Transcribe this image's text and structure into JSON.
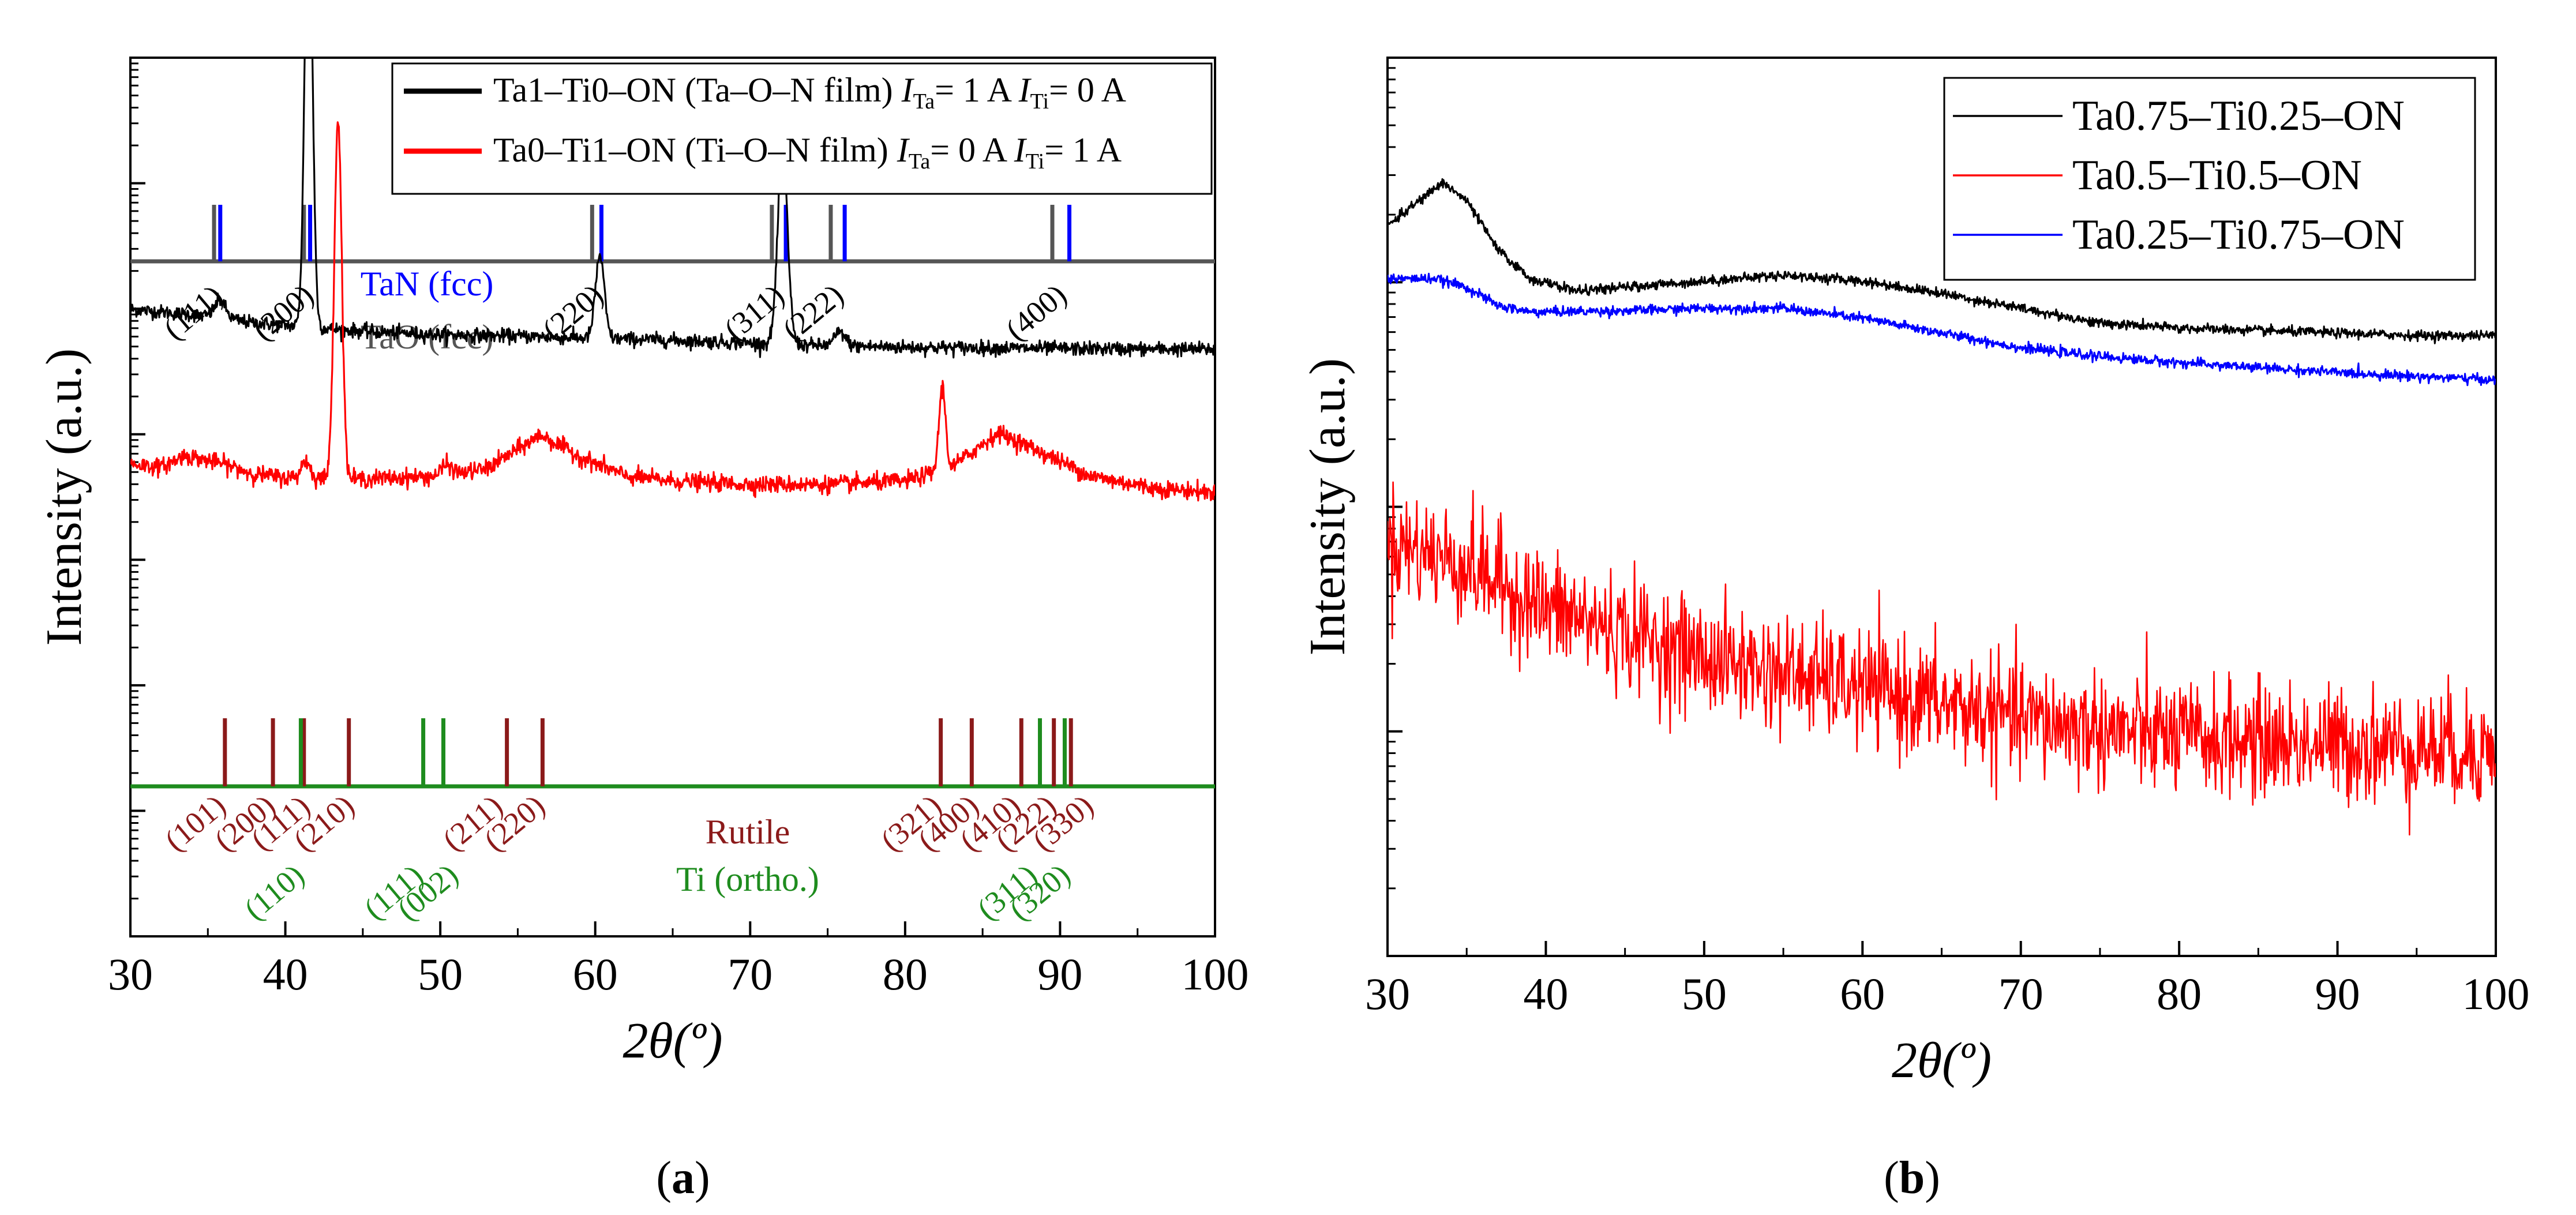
{
  "colors": {
    "black": "#000000",
    "red": "#ff0000",
    "blue": "#0000ff",
    "gray": "#555555",
    "maroon": "#8b1a1a",
    "green": "#1e8c1e"
  },
  "captions": {
    "a": "a",
    "b": "b"
  },
  "chart_data": [
    {
      "type": "line",
      "panel": "a",
      "xlabel": "2θ(º)",
      "ylabel": "Intensity (a.u.)",
      "xlim": [
        30,
        100
      ],
      "ylog": true,
      "x_ticks": [
        "30",
        "40",
        "50",
        "60",
        "70",
        "80",
        "90",
        "100"
      ],
      "legend": [
        {
          "name": "Ta1–Ti0–ON (Ta–O–N film) ",
          "cur_a": "Ta",
          "cur_a_val": "= 1 A ",
          "cur_b": "Ti",
          "cur_b_val": "= 0 A",
          "color": "#000000"
        },
        {
          "name": "Ta0–Ti1–ON (Ti–O–N film) ",
          "cur_a": "Ta",
          "cur_a_val": "= 0 A ",
          "cur_b": "Ti",
          "cur_b_val": "= 1 A",
          "color": "#ff0000"
        }
      ],
      "series": [
        {
          "name": "Ta1–Ti0–ON (Ta–O–N film)",
          "color": "#000000",
          "background": [
            [
              30,
              1.15
            ],
            [
              35,
              1.05
            ],
            [
              38,
              0.95
            ],
            [
              40,
              0.92
            ],
            [
              45,
              0.83
            ],
            [
              50,
              0.78
            ],
            [
              55,
              0.76
            ],
            [
              60,
              0.73
            ],
            [
              65,
              0.7
            ],
            [
              70,
              0.66
            ],
            [
              75,
              0.62
            ],
            [
              80,
              0.6
            ],
            [
              90,
              0.58
            ],
            [
              100,
              0.57
            ]
          ],
          "peaks": [
            [
              35.8,
              0.25,
              0.5
            ],
            [
              41.5,
              6.5,
              0.35
            ],
            [
              60.3,
              1.2,
              0.4
            ],
            [
              72.1,
              2.8,
              0.45
            ],
            [
              75.8,
              0.2,
              0.5
            ]
          ],
          "noise": 0.09
        },
        {
          "name": "Ta0–Ti1–ON (Ti–O–N film)",
          "color": "#ff0000",
          "background": [
            [
              30,
              1.0
            ],
            [
              32,
              0.95
            ],
            [
              33.5,
              1.12
            ],
            [
              36,
              1.0
            ],
            [
              38,
              0.85
            ],
            [
              40,
              0.8
            ],
            [
              45,
              0.78
            ],
            [
              50,
              0.82
            ],
            [
              53,
              0.93
            ],
            [
              56.5,
              1.42
            ],
            [
              59,
              1.1
            ],
            [
              62,
              0.82
            ],
            [
              65,
              0.75
            ],
            [
              70,
              0.7
            ],
            [
              75,
              0.7
            ],
            [
              80,
              0.75
            ],
            [
              83,
              0.95
            ],
            [
              86,
              1.45
            ],
            [
              88,
              1.25
            ],
            [
              92,
              0.82
            ],
            [
              96,
              0.65
            ],
            [
              100,
              0.58
            ]
          ],
          "peaks": [
            [
              43.4,
              5.2,
              0.35
            ],
            [
              41.3,
              0.25,
              0.4
            ],
            [
              50.4,
              0.15,
              0.5
            ],
            [
              82.4,
              1.2,
              0.3
            ]
          ],
          "noise": 0.11
        }
      ],
      "reference_top": {
        "phases": [
          {
            "name": "TaN (fcc)",
            "color": "#0000ff",
            "lines": [
              35.8,
              41.6,
              60.4,
              72.3,
              76.1,
              90.6
            ]
          },
          {
            "name": "TaO (fcc)",
            "color": "#555555",
            "lines": [
              35.4,
              41.2,
              59.8,
              71.4,
              75.2,
              89.5
            ]
          }
        ],
        "labels": [
          {
            "text": "(111)",
            "x": 35.6
          },
          {
            "text": "(200)",
            "x": 41.4
          },
          {
            "text": "(220)",
            "x": 60.1
          },
          {
            "text": "(311)",
            "x": 71.8
          },
          {
            "text": "(222)",
            "x": 75.6
          },
          {
            "text": "(400)",
            "x": 90.0
          }
        ]
      },
      "reference_bottom": {
        "phases": [
          {
            "name": "Rutile",
            "color": "#8b1a1a",
            "lines": [
              36.1,
              39.2,
              41.2,
              44.1,
              54.3,
              56.6,
              82.3,
              84.3,
              87.5,
              89.6,
              90.7
            ]
          },
          {
            "name": "Ti (ortho.)",
            "color": "#1e8c1e",
            "lines": [
              41.0,
              48.9,
              50.2,
              88.7,
              90.3
            ]
          }
        ],
        "labels": [
          {
            "text": "(101)",
            "x": 36.1,
            "phase": "Rutile",
            "row": 0
          },
          {
            "text": "(200)",
            "x": 39.3,
            "phase": "Rutile",
            "row": 0
          },
          {
            "text": "(111)",
            "x": 41.6,
            "phase": "Rutile",
            "row": 0
          },
          {
            "text": "(210)",
            "x": 44.4,
            "phase": "Rutile",
            "row": 0
          },
          {
            "text": "(211)",
            "x": 54.0,
            "phase": "Rutile",
            "row": 0
          },
          {
            "text": "(220)",
            "x": 56.7,
            "phase": "Rutile",
            "row": 0
          },
          {
            "text": "(321)",
            "x": 82.3,
            "phase": "Rutile",
            "row": 0
          },
          {
            "text": "(400)",
            "x": 84.7,
            "phase": "Rutile",
            "row": 0
          },
          {
            "text": "(410)",
            "x": 87.4,
            "phase": "Rutile",
            "row": 0
          },
          {
            "text": "(222)",
            "x": 89.7,
            "phase": "Rutile",
            "row": 0
          },
          {
            "text": "(330)",
            "x": 92.1,
            "phase": "Rutile",
            "row": 0
          },
          {
            "text": "(110)",
            "x": 41.2,
            "phase": "Ti (ortho.)",
            "row": 1
          },
          {
            "text": "(111)",
            "x": 48.9,
            "phase": "Ti (ortho.)",
            "row": 1
          },
          {
            "text": "(002)",
            "x": 51.1,
            "phase": "Ti (ortho.)",
            "row": 1
          },
          {
            "text": "(311)",
            "x": 88.5,
            "phase": "Ti (ortho.)",
            "row": 1
          },
          {
            "text": "(320)",
            "x": 90.6,
            "phase": "Ti (ortho.)",
            "row": 1
          }
        ]
      }
    },
    {
      "type": "line",
      "panel": "b",
      "xlabel": "2θ(º)",
      "ylabel": "Intensity (a.u.)",
      "xlim": [
        30,
        100
      ],
      "ylog": true,
      "x_ticks": [
        "30",
        "40",
        "50",
        "60",
        "70",
        "80",
        "90",
        "100"
      ],
      "legend_placement": "top-right",
      "series": [
        {
          "name": "Ta0.75–Ti0.25–ON",
          "color": "#000000",
          "background": [
            [
              30,
              1.55
            ],
            [
              32,
              1.75
            ],
            [
              33.5,
              1.9
            ],
            [
              35,
              1.75
            ],
            [
              37,
              1.35
            ],
            [
              39,
              1.12
            ],
            [
              42,
              1.02
            ],
            [
              45,
              1.05
            ],
            [
              50,
              1.1
            ],
            [
              55,
              1.15
            ],
            [
              60,
              1.1
            ],
            [
              65,
              1.0
            ],
            [
              70,
              0.88
            ],
            [
              75,
              0.76
            ],
            [
              80,
              0.72
            ],
            [
              85,
              0.7
            ],
            [
              90,
              0.68
            ],
            [
              95,
              0.66
            ],
            [
              100,
              0.66
            ]
          ],
          "peaks": [],
          "noise": 0.035
        },
        {
          "name": "Ta0.5–Ti0.5–ON",
          "color": "#ff0000",
          "background": [
            [
              30,
              -1.0
            ],
            [
              35,
              -1.2
            ],
            [
              40,
              -1.55
            ],
            [
              45,
              -1.75
            ],
            [
              50,
              -1.95
            ],
            [
              60,
              -2.2
            ],
            [
              70,
              -2.45
            ],
            [
              80,
              -2.6
            ],
            [
              90,
              -2.65
            ],
            [
              100,
              -2.7
            ]
          ],
          "peaks": [],
          "noise": 0.42
        },
        {
          "name": "Ta0.25–Ti0.75–ON",
          "color": "#0000ff",
          "background": [
            [
              30,
              1.12
            ],
            [
              33,
              1.12
            ],
            [
              35,
              1.05
            ],
            [
              37,
              0.9
            ],
            [
              39,
              0.85
            ],
            [
              45,
              0.86
            ],
            [
              50,
              0.88
            ],
            [
              55,
              0.88
            ],
            [
              60,
              0.8
            ],
            [
              65,
              0.68
            ],
            [
              70,
              0.56
            ],
            [
              75,
              0.49
            ],
            [
              80,
              0.44
            ],
            [
              90,
              0.36
            ],
            [
              100,
              0.3
            ]
          ],
          "peaks": [],
          "noise": 0.035
        }
      ]
    }
  ]
}
